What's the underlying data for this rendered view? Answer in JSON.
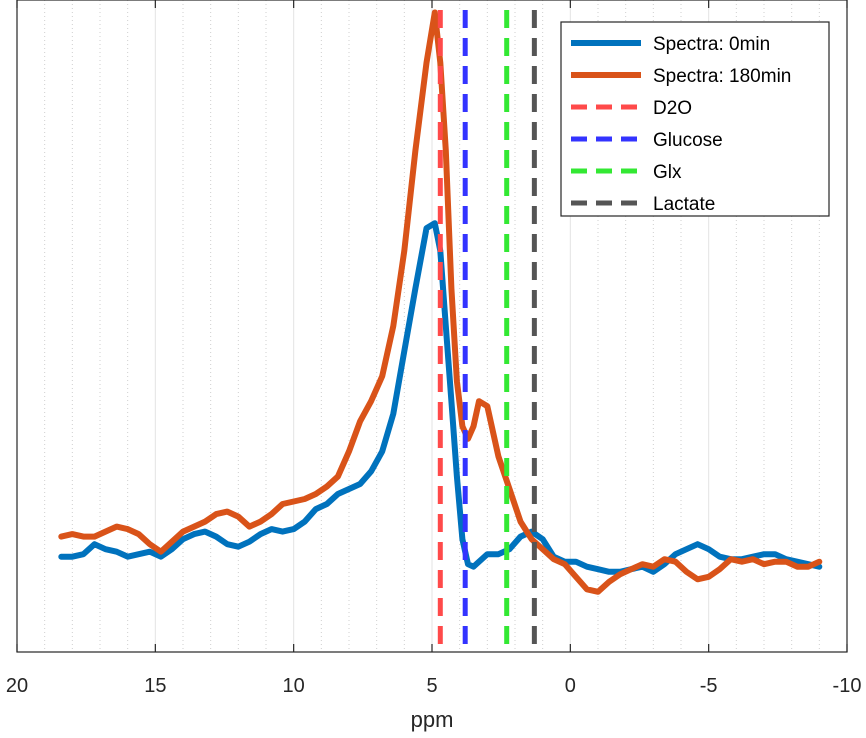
{
  "chart_data": {
    "type": "line",
    "title": "",
    "xlabel": "ppm",
    "ylabel": "",
    "xlim": [
      20,
      -10
    ],
    "ylim": [
      -4,
      22
    ],
    "x_reversed": true,
    "xticks": [
      20,
      15,
      10,
      5,
      0,
      -5,
      -10
    ],
    "xtick_labels": [
      "20",
      "15",
      "10",
      "5",
      "0",
      "-5",
      "-10"
    ],
    "grid": "x-major",
    "legend_position": "top-right",
    "series": [
      {
        "name": "Spectra: 0min",
        "color": "#0072BD",
        "x": [
          18.4,
          18.0,
          17.6,
          17.2,
          16.8,
          16.4,
          16.0,
          15.6,
          15.2,
          14.8,
          14.4,
          14.0,
          13.6,
          13.2,
          12.8,
          12.4,
          12.0,
          11.6,
          11.2,
          10.8,
          10.4,
          10.0,
          9.6,
          9.2,
          8.8,
          8.4,
          8.0,
          7.6,
          7.2,
          6.8,
          6.4,
          6.0,
          5.6,
          5.2,
          4.9,
          4.7,
          4.5,
          4.3,
          4.1,
          3.9,
          3.7,
          3.5,
          3.3,
          3.0,
          2.6,
          2.2,
          1.8,
          1.4,
          1.0,
          0.6,
          0.2,
          -0.2,
          -0.6,
          -1.0,
          -1.4,
          -1.8,
          -2.2,
          -2.6,
          -3.0,
          -3.4,
          -3.8,
          -4.2,
          -4.6,
          -5.0,
          -5.4,
          -5.8,
          -6.2,
          -6.6,
          -7.0,
          -7.4,
          -7.8,
          -8.2,
          -8.6,
          -9.0
        ],
        "values": [
          -0.2,
          -0.2,
          -0.1,
          0.3,
          0.1,
          0.0,
          -0.2,
          -0.1,
          0.0,
          -0.2,
          0.1,
          0.5,
          0.7,
          0.8,
          0.6,
          0.3,
          0.2,
          0.4,
          0.7,
          0.9,
          0.8,
          0.9,
          1.2,
          1.7,
          1.9,
          2.3,
          2.5,
          2.7,
          3.2,
          4.0,
          5.5,
          8.0,
          10.5,
          12.9,
          13.1,
          12.0,
          9.0,
          6.0,
          3.0,
          0.5,
          -0.5,
          -0.6,
          -0.4,
          -0.1,
          -0.1,
          0.1,
          0.6,
          0.8,
          0.5,
          -0.2,
          -0.4,
          -0.4,
          -0.6,
          -0.7,
          -0.8,
          -0.8,
          -0.7,
          -0.6,
          -0.8,
          -0.5,
          -0.1,
          0.1,
          0.3,
          0.1,
          -0.2,
          -0.3,
          -0.3,
          -0.2,
          -0.1,
          -0.1,
          -0.3,
          -0.4,
          -0.5,
          -0.6
        ],
        "line_width": 6
      },
      {
        "name": "Spectra: 180min",
        "color": "#D95319",
        "x": [
          18.4,
          18.0,
          17.6,
          17.2,
          16.8,
          16.4,
          16.0,
          15.6,
          15.2,
          14.8,
          14.4,
          14.0,
          13.6,
          13.2,
          12.8,
          12.4,
          12.0,
          11.6,
          11.2,
          10.8,
          10.4,
          10.0,
          9.6,
          9.2,
          8.8,
          8.4,
          8.0,
          7.6,
          7.2,
          6.8,
          6.4,
          6.0,
          5.6,
          5.2,
          4.9,
          4.7,
          4.5,
          4.3,
          4.1,
          3.9,
          3.7,
          3.5,
          3.3,
          3.0,
          2.6,
          2.2,
          1.8,
          1.4,
          1.0,
          0.6,
          0.2,
          -0.2,
          -0.6,
          -1.0,
          -1.4,
          -1.8,
          -2.2,
          -2.6,
          -3.0,
          -3.4,
          -3.8,
          -4.2,
          -4.6,
          -5.0,
          -5.4,
          -5.8,
          -6.2,
          -6.6,
          -7.0,
          -7.4,
          -7.8,
          -8.2,
          -8.6,
          -9.0
        ],
        "values": [
          0.6,
          0.7,
          0.6,
          0.6,
          0.8,
          1.0,
          0.9,
          0.7,
          0.3,
          0.0,
          0.4,
          0.8,
          1.0,
          1.2,
          1.5,
          1.6,
          1.4,
          1.0,
          1.2,
          1.5,
          1.9,
          2.0,
          2.1,
          2.3,
          2.6,
          3.0,
          4.0,
          5.2,
          6.0,
          7.0,
          9.0,
          12.0,
          16.0,
          19.5,
          21.5,
          19.5,
          16.0,
          10.5,
          6.8,
          5.0,
          4.5,
          5.0,
          6.0,
          5.8,
          3.8,
          2.5,
          1.2,
          0.5,
          0.1,
          -0.3,
          -0.5,
          -1.0,
          -1.5,
          -1.6,
          -1.2,
          -0.9,
          -0.7,
          -0.5,
          -0.6,
          -0.3,
          -0.4,
          -0.8,
          -1.1,
          -1.0,
          -0.7,
          -0.3,
          -0.4,
          -0.3,
          -0.5,
          -0.4,
          -0.4,
          -0.6,
          -0.6,
          -0.4
        ],
        "line_width": 6
      }
    ],
    "vertical_lines": [
      {
        "name": "D2O",
        "x": 4.7,
        "color": "#FF4A4A"
      },
      {
        "name": "Glucose",
        "x": 3.8,
        "color": "#3333FF"
      },
      {
        "name": "Glx",
        "x": 2.3,
        "color": "#33E833"
      },
      {
        "name": "Lactate",
        "x": 1.3,
        "color": "#555555"
      }
    ]
  }
}
